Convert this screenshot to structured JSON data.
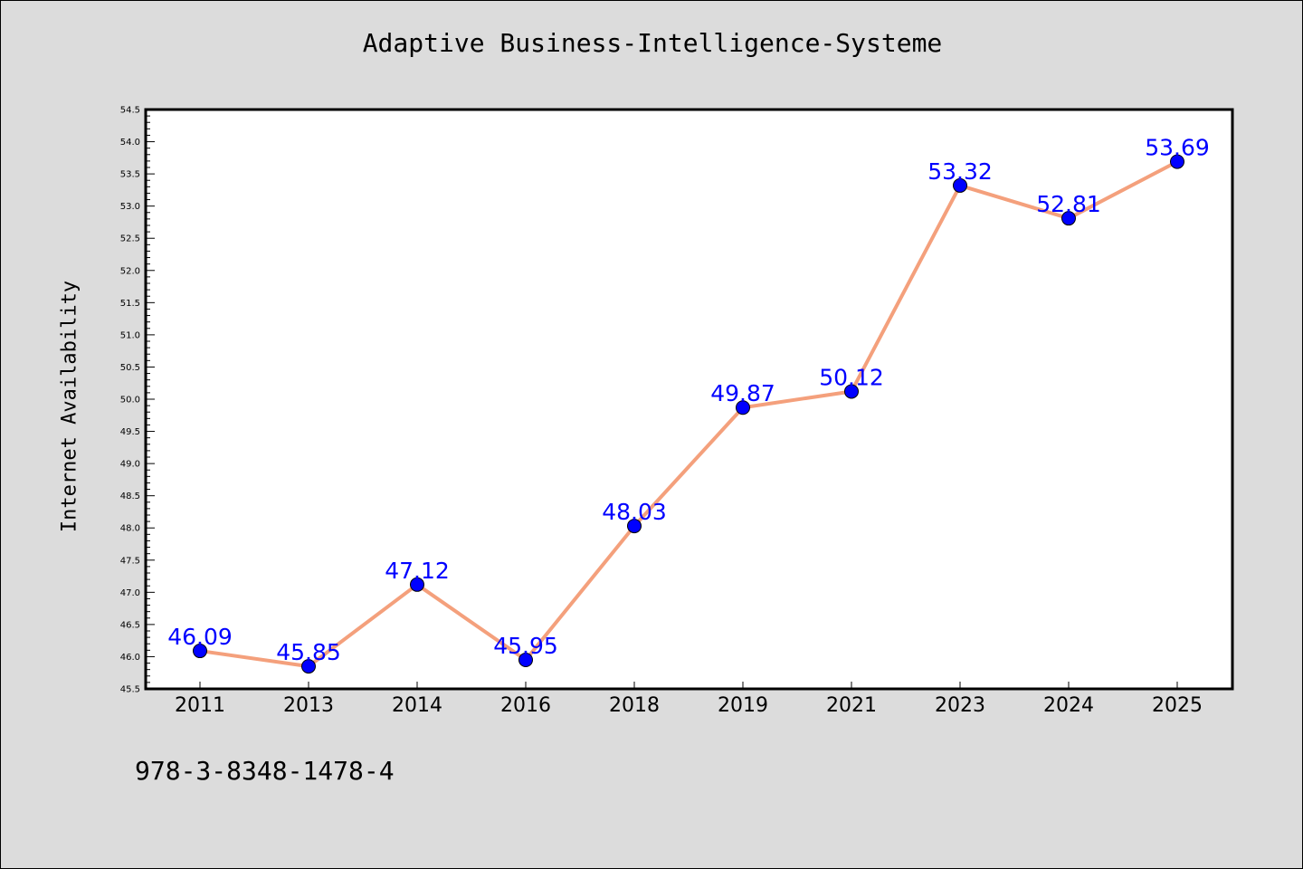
{
  "chart_data": {
    "type": "line",
    "title": "Adaptive Business-Intelligence-Systeme",
    "xlabel": "",
    "ylabel": "Internet Availability",
    "categories": [
      "2011",
      "2013",
      "2014",
      "2016",
      "2018",
      "2019",
      "2021",
      "2023",
      "2024",
      "2025"
    ],
    "series": [
      {
        "values": [
          46.09,
          45.85,
          47.12,
          45.95,
          48.03,
          49.87,
          50.12,
          53.32,
          52.81,
          53.69
        ],
        "labels": [
          "46.09",
          "45.85",
          "47.12",
          "45.95",
          "48.03",
          "49.87",
          "50.12",
          "53.32",
          "52.81",
          "53.69"
        ],
        "line_color": "#f4a07c",
        "marker_color": "#0000ff",
        "label_color": "#0000ff"
      }
    ],
    "ylim": [
      45.5,
      54.5
    ],
    "yticks": [
      "45.5",
      "46.0",
      "46.5",
      "47.0",
      "47.5",
      "48.0",
      "48.5",
      "49.0",
      "49.5",
      "50.0",
      "50.5",
      "51.0",
      "51.5",
      "52.0",
      "52.5",
      "53.0",
      "53.5",
      "54.0",
      "54.5"
    ],
    "grid": false,
    "legend": "none"
  },
  "footer": {
    "code": "978-3-8348-1478-4"
  },
  "colors": {
    "background": "#dcdcdc",
    "plot_background": "#ffffff"
  }
}
